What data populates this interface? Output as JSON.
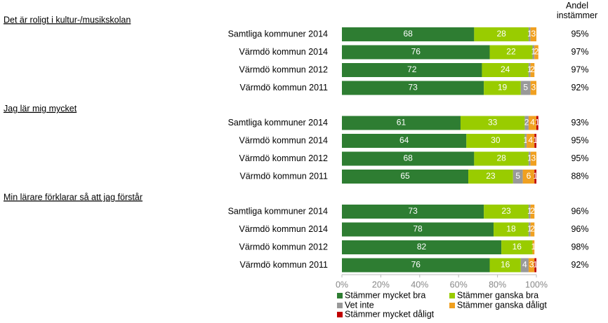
{
  "chart_data": {
    "type": "stacked-bar",
    "share_title": "Andel instämmer",
    "series": [
      {
        "name": "Stämmer mycket bra",
        "color": "#2e7d32"
      },
      {
        "name": "Stämmer ganska bra",
        "color": "#99cc00"
      },
      {
        "name": "Vet inte",
        "color": "#999999"
      },
      {
        "name": "Stämmer ganska dåligt",
        "color": "#f0a020"
      },
      {
        "name": "Stämmer mycket dåligt",
        "color": "#c00000"
      }
    ],
    "xlim": [
      0,
      100
    ],
    "xticks": [
      {
        "value": 0,
        "label": "0%"
      },
      {
        "value": 20,
        "label": "20%"
      },
      {
        "value": 40,
        "label": "40%"
      },
      {
        "value": 60,
        "label": "60%"
      },
      {
        "value": 80,
        "label": "80%"
      },
      {
        "value": 100,
        "label": "100%"
      }
    ],
    "groups": [
      {
        "title": "Det är roligt i kultur-/musikskolan",
        "categories": [
          "Samtliga kommuner 2014",
          "Värmdö kommun 2014",
          "Värmdö kommun 2012",
          "Värmdö kommun 2011"
        ],
        "values": [
          [
            68,
            76,
            72,
            73
          ],
          [
            28,
            22,
            24,
            19
          ],
          [
            1,
            1,
            1,
            5
          ],
          [
            3,
            2,
            2,
            3
          ],
          [
            0,
            0,
            0,
            0
          ]
        ],
        "share": {
          "values": [
            95,
            97,
            97,
            92
          ],
          "value_labels": [
            "95%",
            "97%",
            "97%",
            "92%"
          ]
        }
      },
      {
        "title": "Jag lär mig mycket",
        "categories": [
          "Samtliga kommuner 2014",
          "Värmdö kommun 2014",
          "Värmdö kommun 2012",
          "Värmdö kommun 2011"
        ],
        "values": [
          [
            61,
            64,
            68,
            65
          ],
          [
            33,
            30,
            28,
            23
          ],
          [
            2,
            1,
            1,
            5
          ],
          [
            4,
            4,
            3,
            6
          ],
          [
            1,
            1,
            0,
            1
          ]
        ],
        "share": {
          "values": [
            93,
            95,
            95,
            88
          ],
          "value_labels": [
            "93%",
            "95%",
            "95%",
            "88%"
          ]
        }
      },
      {
        "title": "Min lärare förklarar så att jag förstår",
        "categories": [
          "Samtliga kommuner 2014",
          "Värmdö kommun 2014",
          "Värmdö kommun 2012",
          "Värmdö kommun 2011"
        ],
        "values": [
          [
            73,
            78,
            82,
            76
          ],
          [
            23,
            18,
            16,
            16
          ],
          [
            1,
            1,
            0,
            4
          ],
          [
            2,
            2,
            1,
            3
          ],
          [
            0,
            0,
            0,
            1
          ]
        ],
        "share": {
          "values": [
            96,
            96,
            98,
            92
          ],
          "value_labels": [
            "96%",
            "96%",
            "98%",
            "92%"
          ]
        }
      }
    ]
  }
}
